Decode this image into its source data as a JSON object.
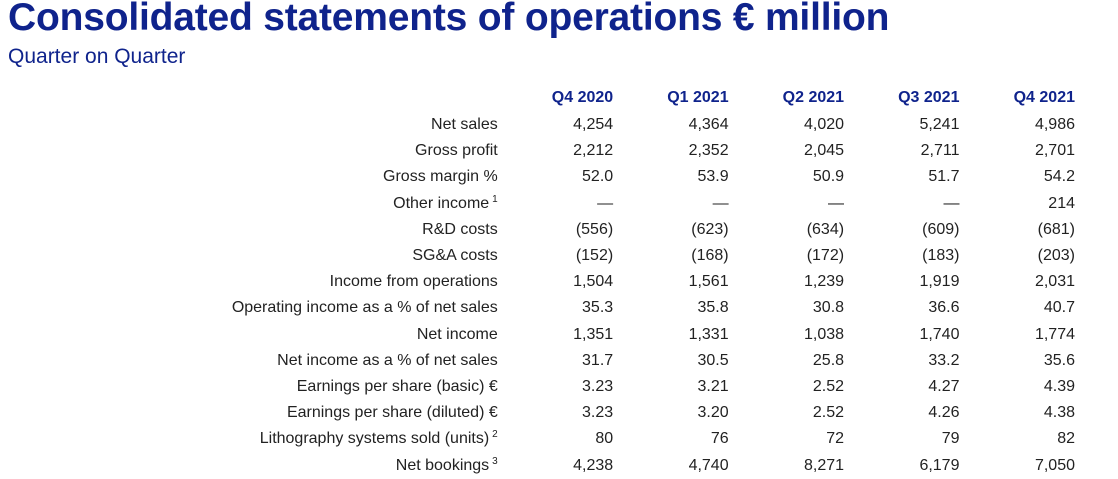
{
  "header": {
    "title": "Consolidated statements of operations € million",
    "subtitle": "Quarter on Quarter"
  },
  "colors": {
    "title": "#0f238c",
    "text": "#222222"
  },
  "table": {
    "columns": [
      "Q4 2020",
      "Q1 2021",
      "Q2 2021",
      "Q3 2021",
      "Q4 2021"
    ],
    "rows": [
      {
        "label": "Net sales",
        "footnote": "",
        "values": [
          "4,254",
          "4,364",
          "4,020",
          "5,241",
          "4,986"
        ]
      },
      {
        "label": "Gross profit",
        "footnote": "",
        "values": [
          "2,212",
          "2,352",
          "2,045",
          "2,711",
          "2,701"
        ]
      },
      {
        "label": "Gross margin %",
        "footnote": "",
        "values": [
          "52.0",
          "53.9",
          "50.9",
          "51.7",
          "54.2"
        ]
      },
      {
        "label": "Other income",
        "footnote": "1",
        "values": [
          "—",
          "—",
          "—",
          "—",
          "214"
        ]
      },
      {
        "label": "R&D costs",
        "footnote": "",
        "values": [
          "(556)",
          "(623)",
          "(634)",
          "(609)",
          "(681)"
        ]
      },
      {
        "label": "SG&A costs",
        "footnote": "",
        "values": [
          "(152)",
          "(168)",
          "(172)",
          "(183)",
          "(203)"
        ]
      },
      {
        "label": "Income from operations",
        "footnote": "",
        "values": [
          "1,504",
          "1,561",
          "1,239",
          "1,919",
          "2,031"
        ]
      },
      {
        "label": "Operating income as a % of net sales",
        "footnote": "",
        "values": [
          "35.3",
          "35.8",
          "30.8",
          "36.6",
          "40.7"
        ]
      },
      {
        "label": "Net income",
        "footnote": "",
        "values": [
          "1,351",
          "1,331",
          "1,038",
          "1,740",
          "1,774"
        ]
      },
      {
        "label": "Net income as a % of net sales",
        "footnote": "",
        "values": [
          "31.7",
          "30.5",
          "25.8",
          "33.2",
          "35.6"
        ]
      },
      {
        "label": "Earnings per share (basic) €",
        "footnote": "",
        "values": [
          "3.23",
          "3.21",
          "2.52",
          "4.27",
          "4.39"
        ]
      },
      {
        "label": "Earnings per share (diluted) €",
        "footnote": "",
        "values": [
          "3.23",
          "3.20",
          "2.52",
          "4.26",
          "4.38"
        ]
      },
      {
        "label": "Lithography systems sold (units)",
        "footnote": "2",
        "values": [
          "80",
          "76",
          "72",
          "79",
          "82"
        ]
      },
      {
        "label": "Net bookings",
        "footnote": "3",
        "values": [
          "4,238",
          "4,740",
          "8,271",
          "6,179",
          "7,050"
        ]
      }
    ]
  }
}
